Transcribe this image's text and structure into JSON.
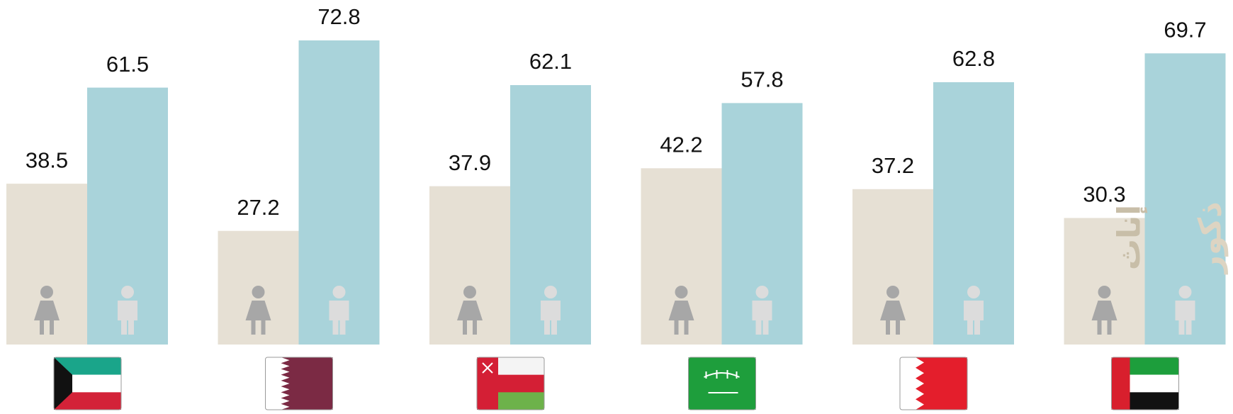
{
  "chart_data": {
    "type": "bar",
    "categories": [
      null,
      null,
      null,
      null,
      null,
      null
    ],
    "series": [
      {
        "name": "إناث",
        "color": "#e6e0d4",
        "values": [
          38.5,
          27.2,
          37.9,
          42.2,
          37.2,
          30.3
        ]
      },
      {
        "name": "ذكور",
        "color": "#a9d3da",
        "values": [
          61.5,
          72.8,
          62.1,
          57.8,
          62.8,
          69.7
        ]
      }
    ]
  }
}
